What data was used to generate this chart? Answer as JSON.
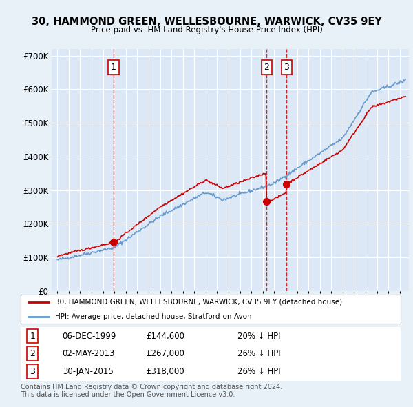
{
  "title": "30, HAMMOND GREEN, WELLESBOURNE, WARWICK, CV35 9EY",
  "subtitle": "Price paid vs. HM Land Registry's House Price Index (HPI)",
  "background_color": "#e8f0f8",
  "plot_bg_color": "#dce8f5",
  "purchases": [
    {
      "date": 1999.92,
      "price": 144600,
      "label": "1"
    },
    {
      "date": 2013.33,
      "price": 267000,
      "label": "2"
    },
    {
      "date": 2015.08,
      "price": 318000,
      "label": "3"
    }
  ],
  "vline_dates": [
    1999.92,
    2013.33,
    2015.08
  ],
  "legend_entries": [
    "30, HAMMOND GREEN, WELLESBOURNE, WARWICK, CV35 9EY (detached house)",
    "HPI: Average price, detached house, Stratford-on-Avon"
  ],
  "table_rows": [
    [
      "1",
      "06-DEC-1999",
      "£144,600",
      "20% ↓ HPI"
    ],
    [
      "2",
      "02-MAY-2013",
      "£267,000",
      "26% ↓ HPI"
    ],
    [
      "3",
      "30-JAN-2015",
      "£318,000",
      "26% ↓ HPI"
    ]
  ],
  "footer": "Contains HM Land Registry data © Crown copyright and database right 2024.\nThis data is licensed under the Open Government Licence v3.0.",
  "ylim": [
    0,
    720000
  ],
  "yticks": [
    0,
    100000,
    200000,
    300000,
    400000,
    500000,
    600000,
    700000
  ],
  "ytick_labels": [
    "£0",
    "£100K",
    "£200K",
    "£300K",
    "£400K",
    "£500K",
    "£600K",
    "£700K"
  ],
  "price_line_color": "#cc0000",
  "hpi_line_color": "#6699cc",
  "vline_color": "#cc0000"
}
